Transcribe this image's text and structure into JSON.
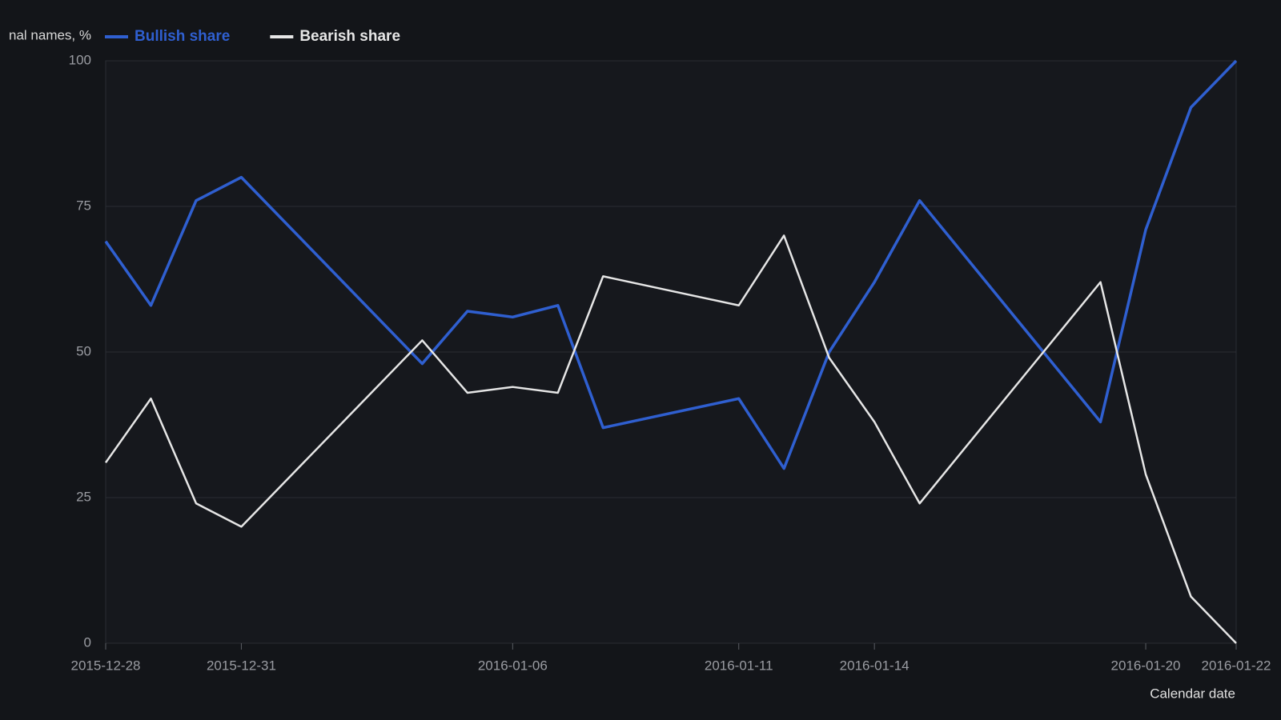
{
  "chart_data": {
    "type": "line",
    "y_label": "nal names, %",
    "x_label": "Calendar date",
    "x": [
      "2015-12-28",
      "2015-12-29",
      "2015-12-30",
      "2015-12-31",
      "2016-01-04",
      "2016-01-05",
      "2016-01-06",
      "2016-01-07",
      "2016-01-08",
      "2016-01-11",
      "2016-01-12",
      "2016-01-13",
      "2016-01-14",
      "2016-01-15",
      "2016-01-19",
      "2016-01-20",
      "2016-01-21",
      "2016-01-22"
    ],
    "series": [
      {
        "name": "Bullish share",
        "color": "#2f5fd0",
        "values": [
          69,
          58,
          76,
          80,
          48,
          57,
          56,
          58,
          37,
          42,
          30,
          50,
          62,
          76,
          38,
          71,
          92,
          100
        ]
      },
      {
        "name": "Bearish share",
        "color": "#e6e6e6",
        "values": [
          31,
          42,
          24,
          20,
          52,
          43,
          44,
          43,
          63,
          58,
          70,
          49,
          38,
          24,
          62,
          29,
          8,
          0
        ]
      }
    ],
    "xlim": [
      "2015-12-28",
      "2016-01-22"
    ],
    "xticks": [
      "2015-12-28",
      "2015-12-31",
      "2016-01-06",
      "2016-01-11",
      "2016-01-14",
      "2016-01-20",
      "2016-01-22"
    ],
    "ylim": [
      0,
      100
    ],
    "yticks": [
      0,
      25,
      50,
      75,
      100
    ],
    "grid": true,
    "legend": "top"
  }
}
